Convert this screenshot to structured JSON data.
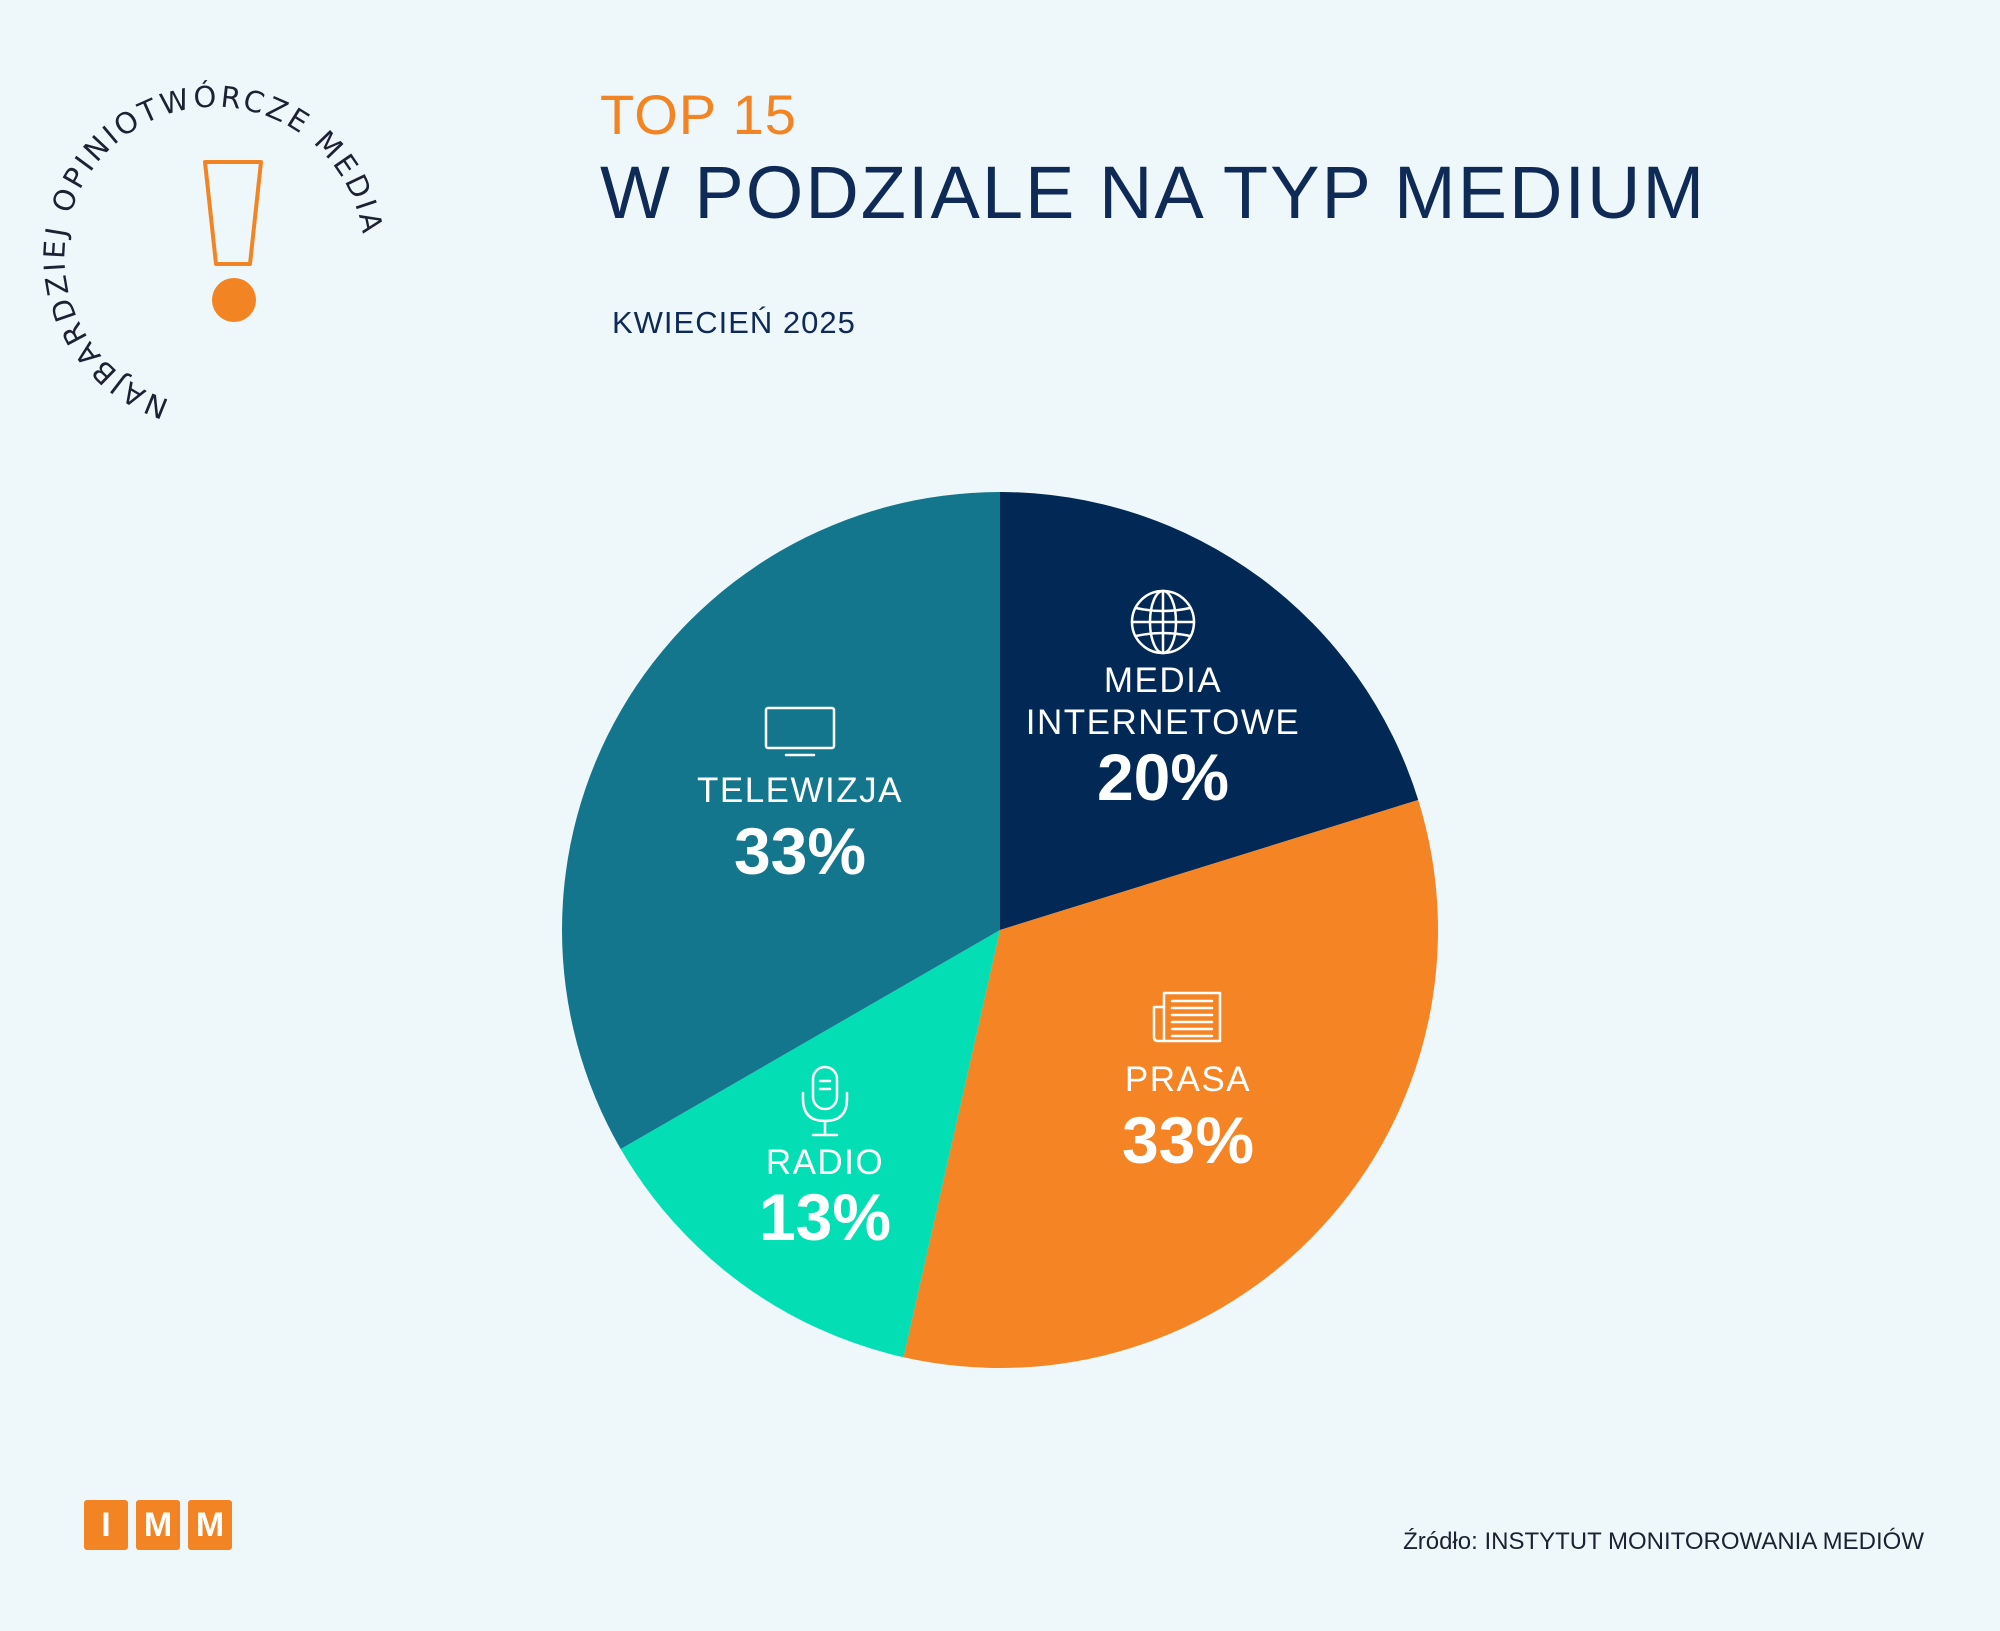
{
  "badge": {
    "ring_text": "NAJBARDZIEJ OPINIOTWÓRCZE MEDIA",
    "accent": "#f38423"
  },
  "header": {
    "top_label": "TOP 15",
    "title": "W PODZIALE NA TYP MEDIUM",
    "period": "KWIECIEŃ 2025"
  },
  "chart_data": {
    "type": "pie",
    "title": "W PODZIALE NA TYP MEDIUM",
    "start": "12 o'clock",
    "direction": "clockwise",
    "slices": [
      {
        "name": "MEDIA INTERNETOWE",
        "lines": [
          "MEDIA",
          "INTERNETOWE"
        ],
        "value": 20,
        "label": "20%",
        "color": "#022956",
        "icon": "globe-icon"
      },
      {
        "name": "PRASA",
        "lines": [
          "PRASA"
        ],
        "value": 33,
        "label": "33%",
        "color": "#f48424",
        "icon": "newspaper-icon"
      },
      {
        "name": "RADIO",
        "lines": [
          "RADIO"
        ],
        "value": 13,
        "label": "13%",
        "color": "#04deb5",
        "icon": "microphone-icon"
      },
      {
        "name": "TELEWIZJA",
        "lines": [
          "TELEWIZJA"
        ],
        "value": 33,
        "label": "33%",
        "color": "#14768d",
        "icon": "tv-icon"
      }
    ]
  },
  "footer": {
    "logo_letters": [
      "I",
      "M",
      "M"
    ],
    "source": "Źródło: INSTYTUT MONITOROWANIA MEDIÓW"
  }
}
